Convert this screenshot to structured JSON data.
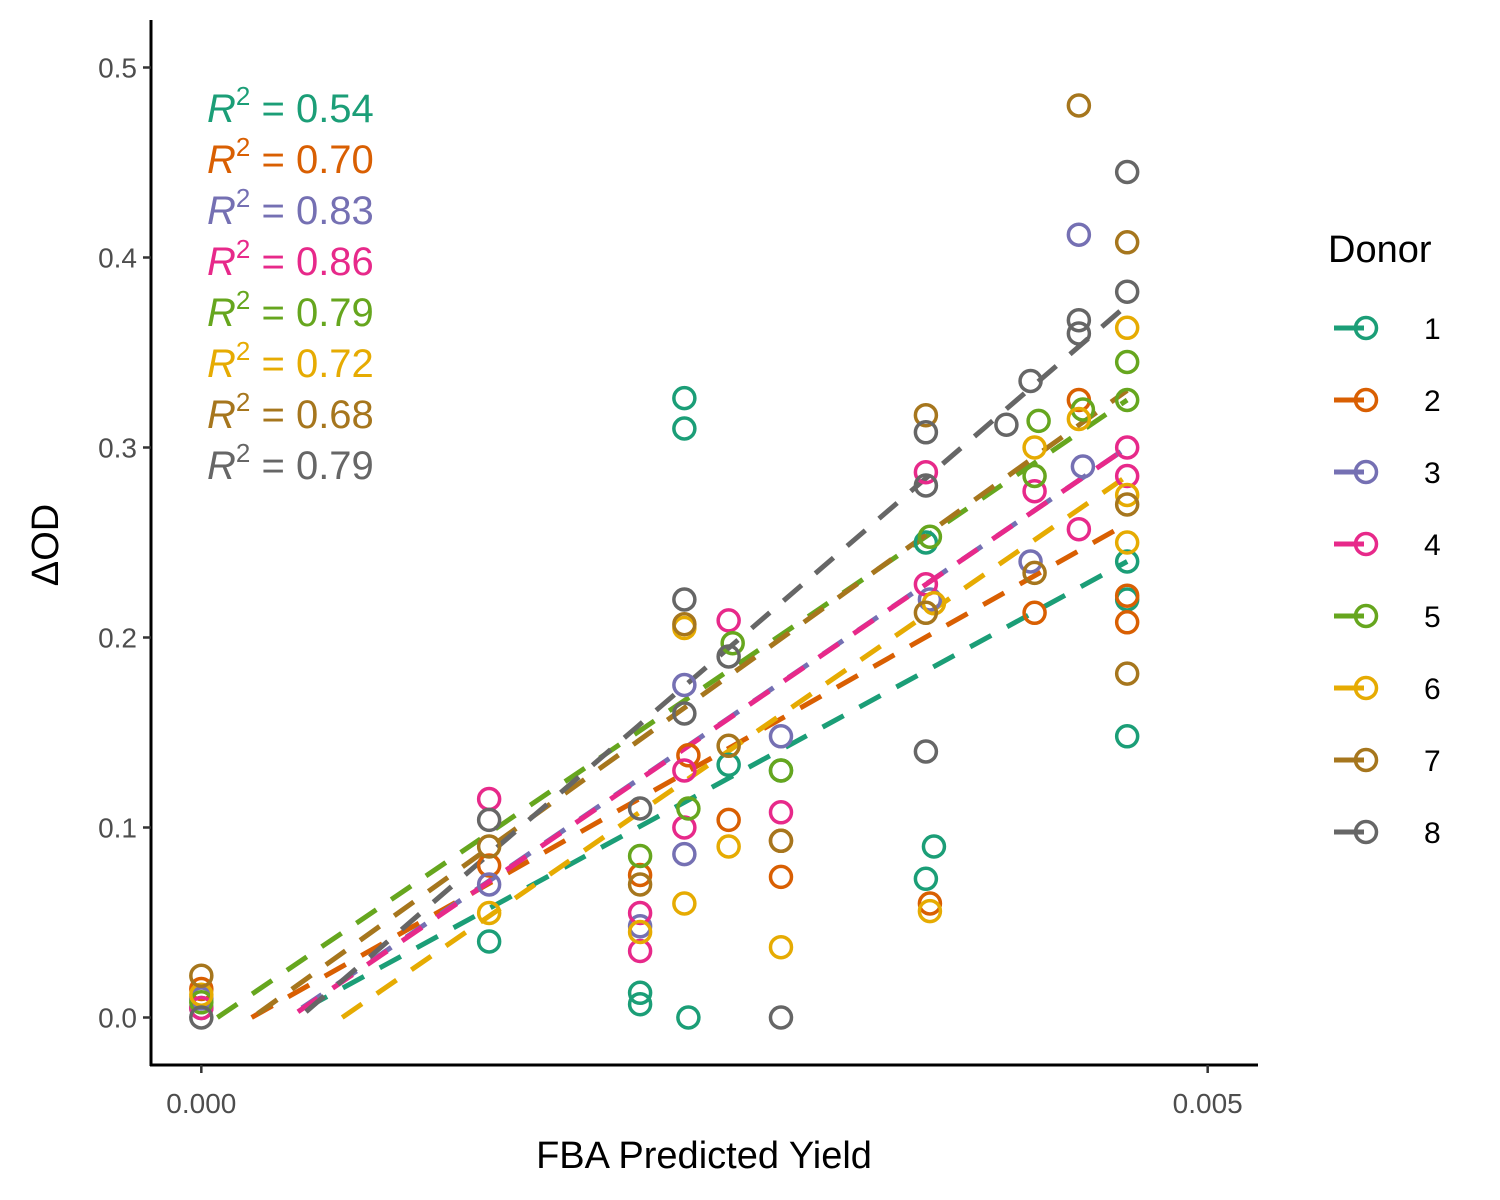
{
  "chart_data": {
    "type": "scatter",
    "title": "",
    "xlabel": "FBA Predicted Yield",
    "ylabel": "ΔOD",
    "xlim": [
      -0.00025,
      0.00525
    ],
    "ylim": [
      -0.025,
      0.525
    ],
    "x_ticks": [
      0,
      0.005
    ],
    "x_tick_labels": [
      "0.000",
      "0.005"
    ],
    "y_ticks": [
      0,
      0.1,
      0.2,
      0.3,
      0.4,
      0.5
    ],
    "y_tick_labels": [
      "0.0",
      "0.1",
      "0.2",
      "0.3",
      "0.4",
      "0.5"
    ],
    "grid": false,
    "legend": {
      "title": "Donor",
      "position": "right"
    },
    "r2_annotations": [
      {
        "symbol": "R",
        "superscript": "2",
        "text": " = 0.54",
        "color": "#1b9e77"
      },
      {
        "symbol": "R",
        "superscript": "2",
        "text": " = 0.70",
        "color": "#d95f02"
      },
      {
        "symbol": "R",
        "superscript": "2",
        "text": " = 0.83",
        "color": "#7570b3"
      },
      {
        "symbol": "R",
        "superscript": "2",
        "text": " = 0.86",
        "color": "#e7298a"
      },
      {
        "symbol": "R",
        "superscript": "2",
        "text": " = 0.79",
        "color": "#66a61e"
      },
      {
        "symbol": "R",
        "superscript": "2",
        "text": " = 0.72",
        "color": "#e6ab02"
      },
      {
        "symbol": "R",
        "superscript": "2",
        "text": " = 0.68",
        "color": "#a6761d"
      },
      {
        "symbol": "R",
        "superscript": "2",
        "text": " = 0.79",
        "color": "#666666"
      }
    ],
    "series": [
      {
        "name": "1",
        "color": "#1b9e77",
        "points": [
          [
            0,
            0.005
          ],
          [
            0.00143,
            0.04
          ],
          [
            0.00218,
            0.013
          ],
          [
            0.00218,
            0.007
          ],
          [
            0.0024,
            0.31
          ],
          [
            0.0024,
            0.326
          ],
          [
            0.00242,
            0
          ],
          [
            0.00262,
            0.133
          ],
          [
            0.00288,
            0.13
          ],
          [
            0.0036,
            0.073
          ],
          [
            0.00364,
            0.09
          ],
          [
            0.0036,
            0.25
          ],
          [
            0.0046,
            0.148
          ],
          [
            0.0046,
            0.22
          ],
          [
            0.0046,
            0.24
          ]
        ],
        "trend": [
          [
            0.00052,
            0.005
          ],
          [
            0.0046,
            0.24
          ]
        ]
      },
      {
        "name": "2",
        "color": "#d95f02",
        "points": [
          [
            0,
            0.015
          ],
          [
            0.00143,
            0.08
          ],
          [
            0.00218,
            0.075
          ],
          [
            0.00242,
            0.138
          ],
          [
            0.00262,
            0.104
          ],
          [
            0.00288,
            0.074
          ],
          [
            0.00288,
            0.093
          ],
          [
            0.00362,
            0.06
          ],
          [
            0.00414,
            0.213
          ],
          [
            0.00436,
            0.325
          ],
          [
            0.0046,
            0.208
          ],
          [
            0.0046,
            0.222
          ]
        ],
        "trend": [
          [
            0.00025,
            0
          ],
          [
            0.0046,
            0.26
          ]
        ]
      },
      {
        "name": "3",
        "color": "#7570b3",
        "points": [
          [
            0,
            0.01
          ],
          [
            0.00143,
            0.07
          ],
          [
            0.00218,
            0.048
          ],
          [
            0.0024,
            0.175
          ],
          [
            0.0024,
            0.086
          ],
          [
            0.00288,
            0.148
          ],
          [
            0.00362,
            0.22
          ],
          [
            0.00412,
            0.24
          ],
          [
            0.00436,
            0.412
          ],
          [
            0.00438,
            0.29
          ]
        ],
        "trend": [
          [
            0.0005,
            0.005
          ],
          [
            0.0046,
            0.3
          ]
        ]
      },
      {
        "name": "4",
        "color": "#e7298a",
        "points": [
          [
            0,
            0.005
          ],
          [
            0.00143,
            0.115
          ],
          [
            0.00218,
            0.055
          ],
          [
            0.00218,
            0.035
          ],
          [
            0.0024,
            0.13
          ],
          [
            0.0024,
            0.1
          ],
          [
            0.00262,
            0.209
          ],
          [
            0.00288,
            0.108
          ],
          [
            0.0036,
            0.287
          ],
          [
            0.0036,
            0.228
          ],
          [
            0.00414,
            0.277
          ],
          [
            0.00436,
            0.257
          ],
          [
            0.0046,
            0.285
          ],
          [
            0.0046,
            0.3
          ]
        ],
        "trend": [
          [
            0.00048,
            0.003
          ],
          [
            0.0046,
            0.3
          ]
        ]
      },
      {
        "name": "5",
        "color": "#66a61e",
        "points": [
          [
            0,
            0.008
          ],
          [
            0.00218,
            0.085
          ],
          [
            0.00242,
            0.11
          ],
          [
            0.00264,
            0.197
          ],
          [
            0.00288,
            0.13
          ],
          [
            0.00362,
            0.253
          ],
          [
            0.00414,
            0.285
          ],
          [
            0.00416,
            0.314
          ],
          [
            0.00438,
            0.32
          ],
          [
            0.0046,
            0.325
          ],
          [
            0.0046,
            0.345
          ]
        ],
        "trend": [
          [
            8e-05,
            0
          ],
          [
            0.0046,
            0.325
          ]
        ]
      },
      {
        "name": "6",
        "color": "#e6ab02",
        "points": [
          [
            0,
            0.012
          ],
          [
            0.00143,
            0.055
          ],
          [
            0.00218,
            0.045
          ],
          [
            0.0024,
            0.205
          ],
          [
            0.0024,
            0.06
          ],
          [
            0.00262,
            0.09
          ],
          [
            0.00288,
            0.037
          ],
          [
            0.00362,
            0.056
          ],
          [
            0.00364,
            0.218
          ],
          [
            0.00414,
            0.3
          ],
          [
            0.00436,
            0.315
          ],
          [
            0.0046,
            0.275
          ],
          [
            0.0046,
            0.25
          ],
          [
            0.0046,
            0.363
          ]
        ],
        "trend": [
          [
            0.0007,
            0
          ],
          [
            0.0046,
            0.285
          ]
        ]
      },
      {
        "name": "7",
        "color": "#a6761d",
        "points": [
          [
            0,
            0.022
          ],
          [
            0.00143,
            0.09
          ],
          [
            0.00218,
            0.07
          ],
          [
            0.0024,
            0.207
          ],
          [
            0.00262,
            0.143
          ],
          [
            0.00288,
            0.093
          ],
          [
            0.0036,
            0.213
          ],
          [
            0.0036,
            0.317
          ],
          [
            0.00414,
            0.234
          ],
          [
            0.00436,
            0.48
          ],
          [
            0.0046,
            0.408
          ],
          [
            0.0046,
            0.181
          ],
          [
            0.0046,
            0.27
          ]
        ],
        "trend": [
          [
            0.00028,
            0.002
          ],
          [
            0.0046,
            0.33
          ]
        ]
      },
      {
        "name": "8",
        "color": "#666666",
        "points": [
          [
            0,
            0
          ],
          [
            0.00143,
            0.104
          ],
          [
            0.00218,
            0.11
          ],
          [
            0.0024,
            0.22
          ],
          [
            0.0024,
            0.16
          ],
          [
            0.00262,
            0.19
          ],
          [
            0.00288,
            0
          ],
          [
            0.0036,
            0.14
          ],
          [
            0.0036,
            0.308
          ],
          [
            0.0036,
            0.28
          ],
          [
            0.00412,
            0.335
          ],
          [
            0.004,
            0.312
          ],
          [
            0.00436,
            0.36
          ],
          [
            0.00436,
            0.367
          ],
          [
            0.0046,
            0.445
          ],
          [
            0.0046,
            0.382
          ]
        ],
        "trend": [
          [
            0.00052,
            0.003
          ],
          [
            0.0046,
            0.375
          ]
        ]
      }
    ]
  }
}
